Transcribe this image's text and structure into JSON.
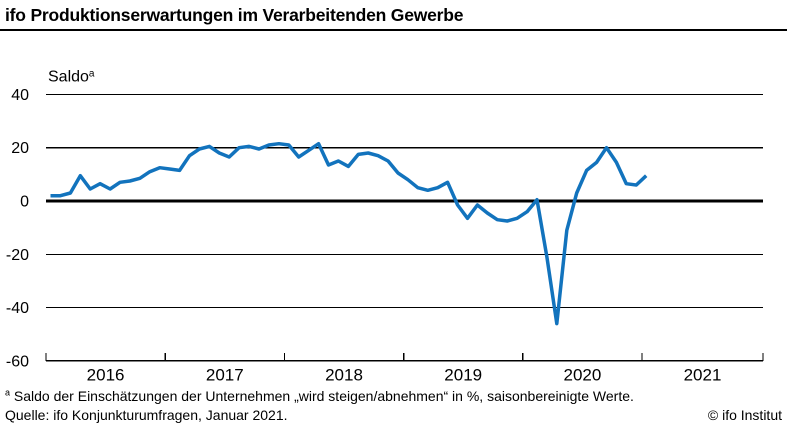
{
  "header": {
    "title": "ifo Produktionserwartungen im Verarbeitenden Gewerbe"
  },
  "footer": {
    "footnote_marker": "a",
    "footnote": "Saldo der Einschätzungen der Unternehmen „wird steigen/abnehmen“ in %, saisonbereinigte Werte.",
    "source": "Quelle: ifo Konjunkturumfragen, Januar 2021.",
    "copyright": "© ifo Institut"
  },
  "chart_data": {
    "type": "line",
    "title": "ifo Produktionserwartungen im Verarbeitenden Gewerbe",
    "xlabel": "",
    "ylabel": "Saldo",
    "ylabel_superscript": "a",
    "ylim": [
      -60,
      40
    ],
    "yticks": [
      40,
      20,
      0,
      -20,
      -40,
      -60
    ],
    "xticks_years": [
      2016,
      2017,
      2018,
      2019,
      2020,
      2021
    ],
    "grid": true,
    "legend": "none",
    "line_color": "#1273bd",
    "series": [
      {
        "name": "Produktionserwartungen Verarbeitendes Gewerbe (Saldo, saisonbereinigt)",
        "frequency": "monthly",
        "start": "2016-01",
        "end": "2021-01",
        "values": [
          2,
          2,
          3,
          9.5,
          4.5,
          6.5,
          4.5,
          7,
          7.5,
          8.5,
          11,
          12.5,
          12,
          11.5,
          17,
          19.5,
          20.5,
          18,
          16.5,
          20,
          20.5,
          19.5,
          21,
          21.5,
          21,
          16.5,
          19,
          21.5,
          13.5,
          15,
          13,
          17.5,
          18,
          17,
          15,
          10.5,
          8,
          5,
          4,
          5,
          7,
          -1.5,
          -6.5,
          -1.5,
          -4.5,
          -7,
          -7.5,
          -6.5,
          -4,
          0.5,
          -21,
          -46,
          -11,
          3,
          11.5,
          14.5,
          20,
          14.5,
          6.5,
          6,
          9.5
        ]
      }
    ]
  }
}
